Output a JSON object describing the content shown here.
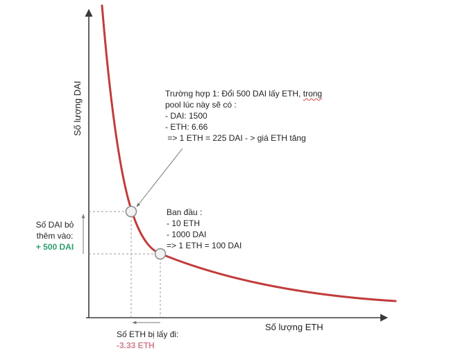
{
  "colors": {
    "curve": "#c23b3b",
    "axis": "#3a3a3a",
    "guide": "#999999",
    "point_fill": "#f2f2f2",
    "point_stroke": "#8a8a8a",
    "dai_added": "#2e9e6e",
    "eth_removed": "#d08090"
  },
  "axes": {
    "y_label": "Số lượng DAI",
    "x_label": "Số lượng ETH"
  },
  "initial_state": {
    "title": "Ban đầu :",
    "lines": [
      "- 10 ETH",
      "- 1000 DAI",
      "=> 1 ETH = 100 DAI"
    ]
  },
  "case1": {
    "line1_prefix": "Trường hợp 1: Đổi 500 DAI lấy ETH, ",
    "line1_flag": "trong",
    "lines": [
      "pool lúc này sẽ có :",
      "- DAI: 1500",
      "- ETH: 6.66",
      " => 1 ETH = 225 DAI - > giá ETH tăng"
    ]
  },
  "dai_added": {
    "label_line1": "Số DAI bỏ",
    "label_line2": "thêm vào:",
    "value": "+ 500 DAI"
  },
  "eth_removed": {
    "label": "Số ETH bị lấy đi:",
    "value": "-3.33 ETH"
  }
}
